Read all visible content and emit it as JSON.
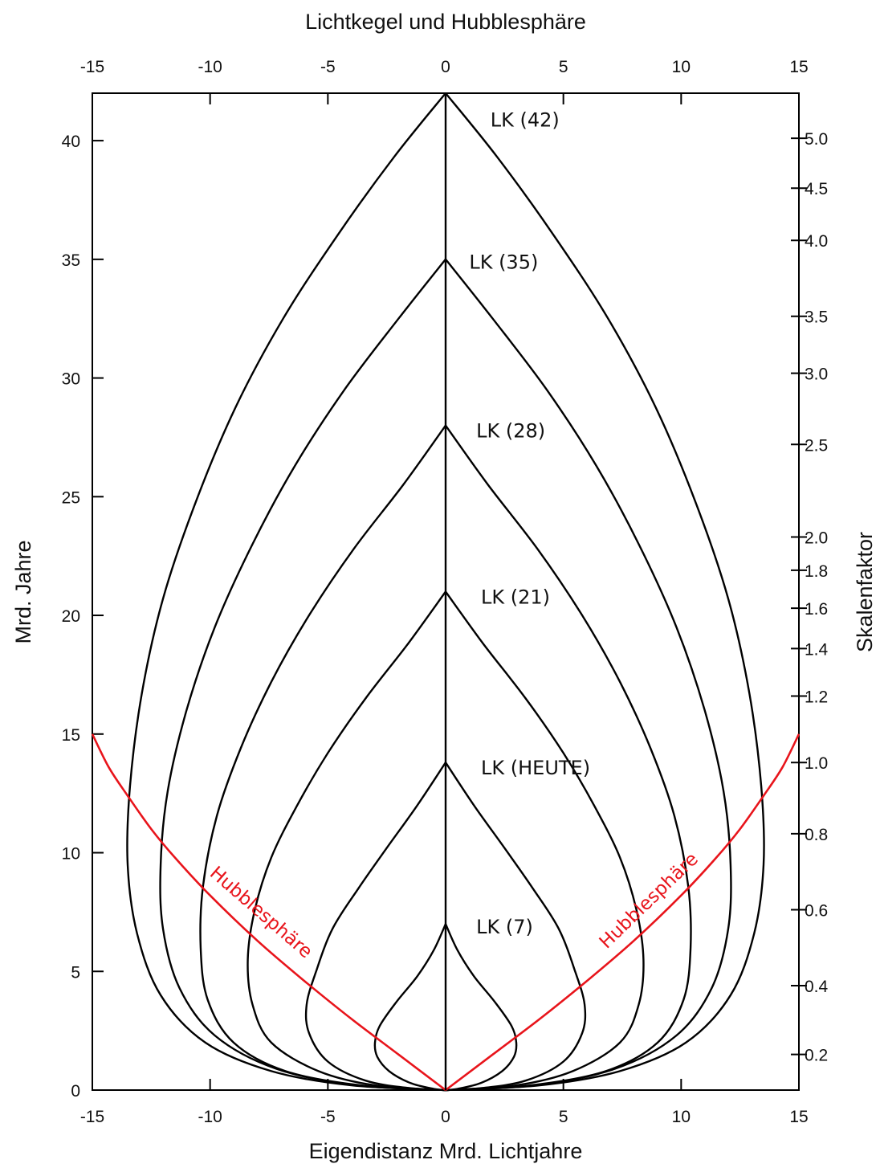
{
  "chart_data": {
    "type": "line",
    "title": "Lichtkegel und Hubblesphäre",
    "xlabel": "Eigendistanz Mrd. Lichtjahre",
    "ylabel": "Mrd. Jahre",
    "y2label": "Skalenfaktor",
    "xlim": [
      -15,
      15
    ],
    "ylim": [
      0,
      42
    ],
    "x_ticks": [
      -15,
      -10,
      -5,
      0,
      5,
      10,
      15
    ],
    "x_tick_labels": [
      "-15",
      "-10",
      "-5",
      "0",
      "5",
      "10",
      "15"
    ],
    "y_ticks": [
      0,
      5,
      10,
      15,
      20,
      25,
      30,
      35,
      40
    ],
    "y_tick_labels": [
      "0",
      "5",
      "10",
      "15",
      "20",
      "25",
      "30",
      "35",
      "40"
    ],
    "scale_factor_ticks": [
      {
        "value": "0.2",
        "t": 1.5
      },
      {
        "value": "0.4",
        "t": 4.4
      },
      {
        "value": "0.6",
        "t": 7.6
      },
      {
        "value": "0.8",
        "t": 10.8
      },
      {
        "value": "1.0",
        "t": 13.8
      },
      {
        "value": "1.2",
        "t": 16.6
      },
      {
        "value": "1.4",
        "t": 18.6
      },
      {
        "value": "1.6",
        "t": 20.3
      },
      {
        "value": "1.8",
        "t": 21.9
      },
      {
        "value": "2.0",
        "t": 23.3
      },
      {
        "value": "2.5",
        "t": 27.2
      },
      {
        "value": "3.0",
        "t": 30.2
      },
      {
        "value": "3.5",
        "t": 32.6
      },
      {
        "value": "4.0",
        "t": 35.8
      },
      {
        "value": "4.5",
        "t": 38.0
      },
      {
        "value": "5.0",
        "t": 40.1
      }
    ],
    "grid": false,
    "series": [
      {
        "name": "LK (7)",
        "color": "#000000",
        "right": [
          [
            0,
            7
          ],
          [
            0.5,
            5.9
          ],
          [
            1.2,
            4.8
          ],
          [
            2.1,
            3.7
          ],
          [
            2.8,
            2.7
          ],
          [
            3.0,
            2.0
          ],
          [
            2.9,
            1.4
          ],
          [
            2.4,
            0.8
          ],
          [
            1.5,
            0.3
          ],
          [
            0.5,
            0.05
          ],
          [
            0,
            0
          ]
        ]
      },
      {
        "name": "LK (HEUTE)",
        "color": "#000000",
        "right": [
          [
            0,
            13.8
          ],
          [
            1.2,
            12.0
          ],
          [
            2.5,
            10.2
          ],
          [
            3.7,
            8.5
          ],
          [
            4.8,
            6.8
          ],
          [
            5.5,
            5.0
          ],
          [
            5.9,
            3.6
          ],
          [
            5.8,
            2.4
          ],
          [
            5.0,
            1.2
          ],
          [
            3.4,
            0.4
          ],
          [
            1.5,
            0.08
          ],
          [
            0,
            0
          ]
        ]
      },
      {
        "name": "LK (21)",
        "color": "#000000",
        "right": [
          [
            0,
            21
          ],
          [
            1.6,
            18.8
          ],
          [
            3.4,
            16.5
          ],
          [
            5.0,
            14.2
          ],
          [
            6.3,
            12.0
          ],
          [
            7.4,
            9.8
          ],
          [
            8.1,
            7.6
          ],
          [
            8.4,
            5.5
          ],
          [
            8.2,
            3.6
          ],
          [
            7.4,
            2.0
          ],
          [
            5.4,
            0.8
          ],
          [
            3.0,
            0.2
          ],
          [
            0,
            0
          ]
        ]
      },
      {
        "name": "LK (28)",
        "color": "#000000",
        "right": [
          [
            0,
            28
          ],
          [
            1.8,
            25.5
          ],
          [
            3.9,
            22.8
          ],
          [
            5.8,
            20.0
          ],
          [
            7.4,
            17.2
          ],
          [
            8.7,
            14.4
          ],
          [
            9.7,
            11.6
          ],
          [
            10.3,
            8.6
          ],
          [
            10.4,
            6.0
          ],
          [
            10.1,
            3.8
          ],
          [
            9.0,
            2.0
          ],
          [
            6.8,
            0.8
          ],
          [
            3.6,
            0.2
          ],
          [
            0,
            0
          ]
        ]
      },
      {
        "name": "LK (35)",
        "color": "#000000",
        "right": [
          [
            0,
            35
          ],
          [
            2.0,
            32.5
          ],
          [
            4.3,
            29.5
          ],
          [
            6.4,
            26.3
          ],
          [
            8.2,
            23.0
          ],
          [
            9.8,
            19.5
          ],
          [
            11.0,
            16.0
          ],
          [
            11.8,
            12.6
          ],
          [
            12.1,
            9.5
          ],
          [
            12.0,
            6.8
          ],
          [
            11.3,
            4.3
          ],
          [
            9.8,
            2.3
          ],
          [
            7.2,
            0.9
          ],
          [
            3.8,
            0.2
          ],
          [
            0,
            0
          ]
        ]
      },
      {
        "name": "LK (42)",
        "color": "#000000",
        "right": [
          [
            0,
            42
          ],
          [
            2.2,
            39.3
          ],
          [
            4.6,
            36.0
          ],
          [
            6.9,
            32.5
          ],
          [
            8.9,
            28.8
          ],
          [
            10.6,
            24.8
          ],
          [
            12.0,
            20.7
          ],
          [
            12.9,
            16.7
          ],
          [
            13.4,
            12.8
          ],
          [
            13.5,
            9.5
          ],
          [
            13.1,
            6.6
          ],
          [
            12.1,
            4.0
          ],
          [
            10.2,
            2.0
          ],
          [
            7.4,
            0.8
          ],
          [
            4.0,
            0.2
          ],
          [
            0,
            0
          ]
        ]
      },
      {
        "name": "Hubblesphäre",
        "color": "#e8141b",
        "right": [
          [
            0,
            0
          ],
          [
            2,
            1.5
          ],
          [
            4,
            3.0
          ],
          [
            6,
            4.6
          ],
          [
            8,
            6.3
          ],
          [
            10,
            8.2
          ],
          [
            11.5,
            9.8
          ],
          [
            12.5,
            11.0
          ],
          [
            13.5,
            12.4
          ],
          [
            14.3,
            13.6
          ],
          [
            15,
            15.0
          ]
        ]
      }
    ],
    "annotations": [
      {
        "text": "LK (42)",
        "x": 1.9,
        "y": 40.6
      },
      {
        "text": "LK (35)",
        "x": 1.0,
        "y": 34.6
      },
      {
        "text": "LK (28)",
        "x": 1.3,
        "y": 27.5
      },
      {
        "text": "LK (21)",
        "x": 1.5,
        "y": 20.5
      },
      {
        "text": "LK (HEUTE)",
        "x": 1.5,
        "y": 13.3
      },
      {
        "text": "LK (7)",
        "x": 1.3,
        "y": 6.6
      },
      {
        "text": "Hubblesphäre",
        "x": -8.0,
        "y": 7.3,
        "angle": 41
      },
      {
        "text": "Hubblesphäre",
        "x": 8.8,
        "y": 7.8,
        "angle": -44
      }
    ]
  }
}
